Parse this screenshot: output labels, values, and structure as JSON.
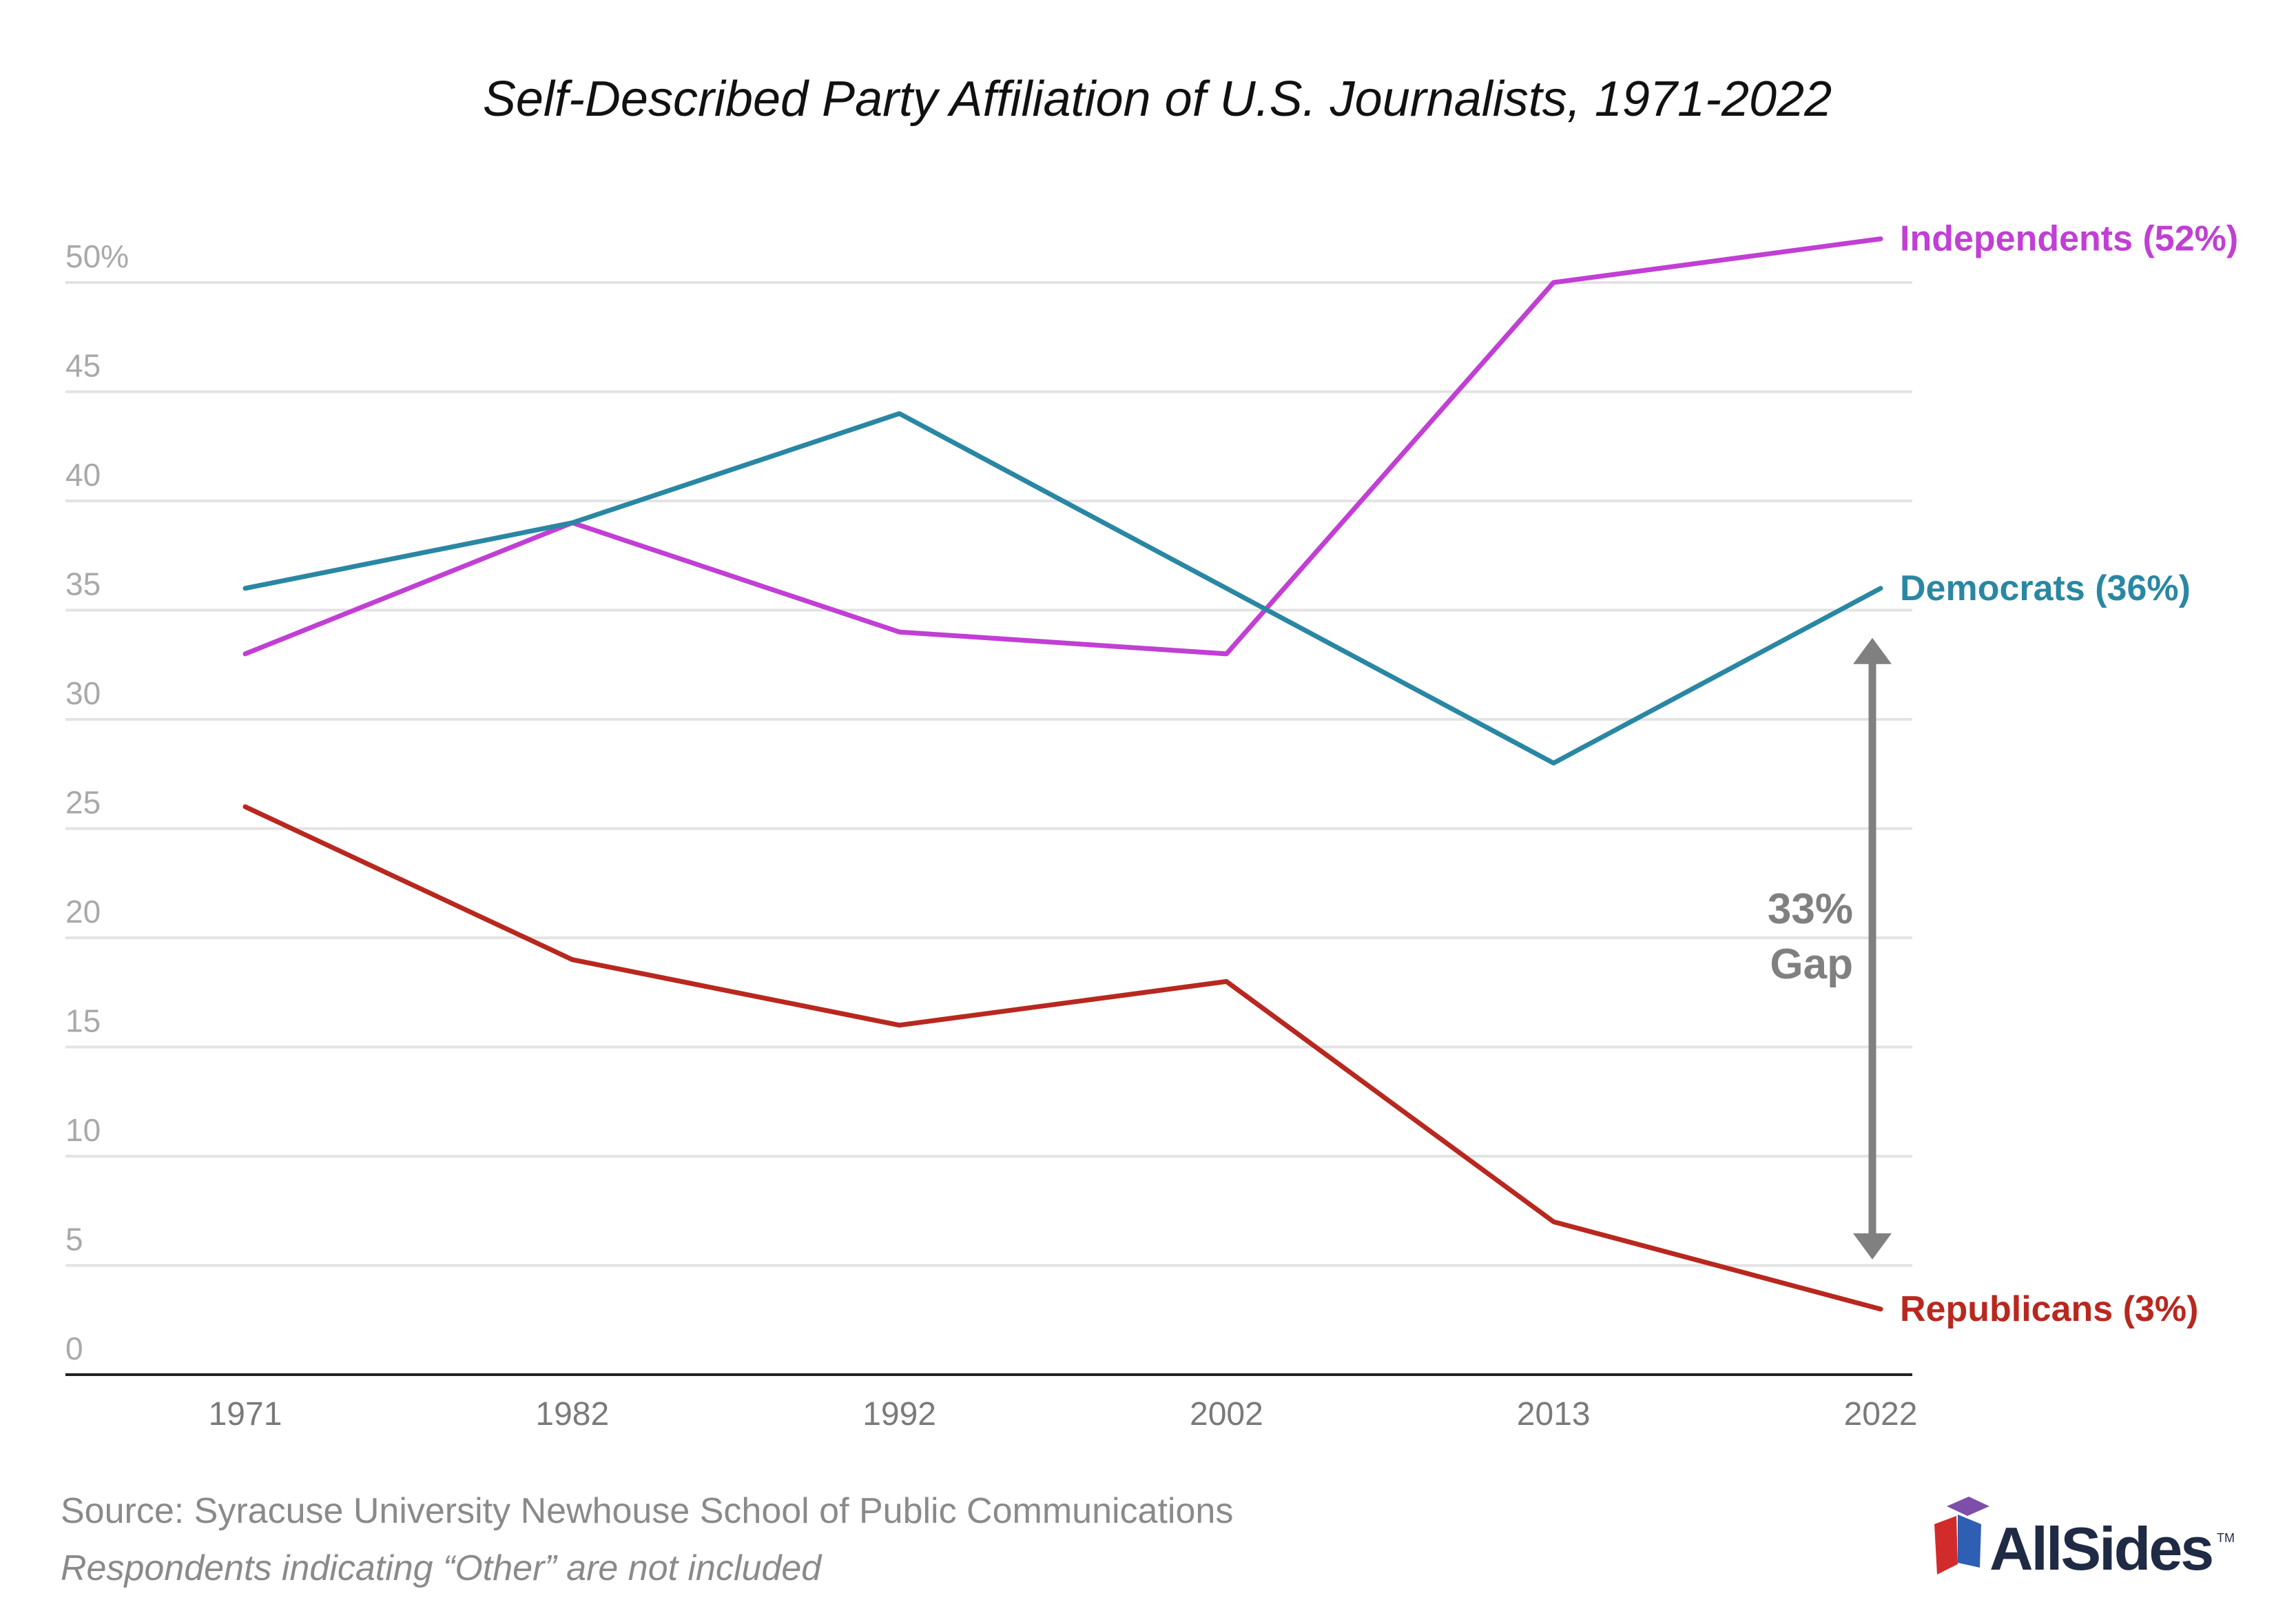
{
  "chart_data": {
    "type": "line",
    "title": "Self-Described Party Affiliation of U.S. Journalists, 1971-2022",
    "x": [
      "1971",
      "1982",
      "1992",
      "2002",
      "2013",
      "2022"
    ],
    "ylim": [
      0,
      50
    ],
    "yticks": [
      "0",
      "5",
      "10",
      "15",
      "20",
      "25",
      "30",
      "35",
      "40",
      "45",
      "50%"
    ],
    "grid": true,
    "series": [
      {
        "name": "Independents",
        "label": "Independents (52%)",
        "color": "#c13fd4",
        "values": [
          33,
          39,
          34,
          33,
          50,
          52
        ]
      },
      {
        "name": "Democrats",
        "label": "Democrats (36%)",
        "color": "#2a87a3",
        "values": [
          36,
          39,
          44,
          36,
          28,
          36
        ]
      },
      {
        "name": "Republicans",
        "label": "Republicans (3%)",
        "color": "#b8281f",
        "values": [
          26,
          19,
          16,
          18,
          7,
          3
        ]
      }
    ],
    "annotation": {
      "line1": "33%",
      "line2": "Gap",
      "from_value": 36,
      "to_value": 3,
      "color": "#808080"
    }
  },
  "footer": {
    "source": "Source: Syracuse University Newhouse School of Public Communications",
    "note": "Respondents indicating “Other” are not included"
  },
  "logo": {
    "text": "AllSides",
    "tm": "TM"
  }
}
